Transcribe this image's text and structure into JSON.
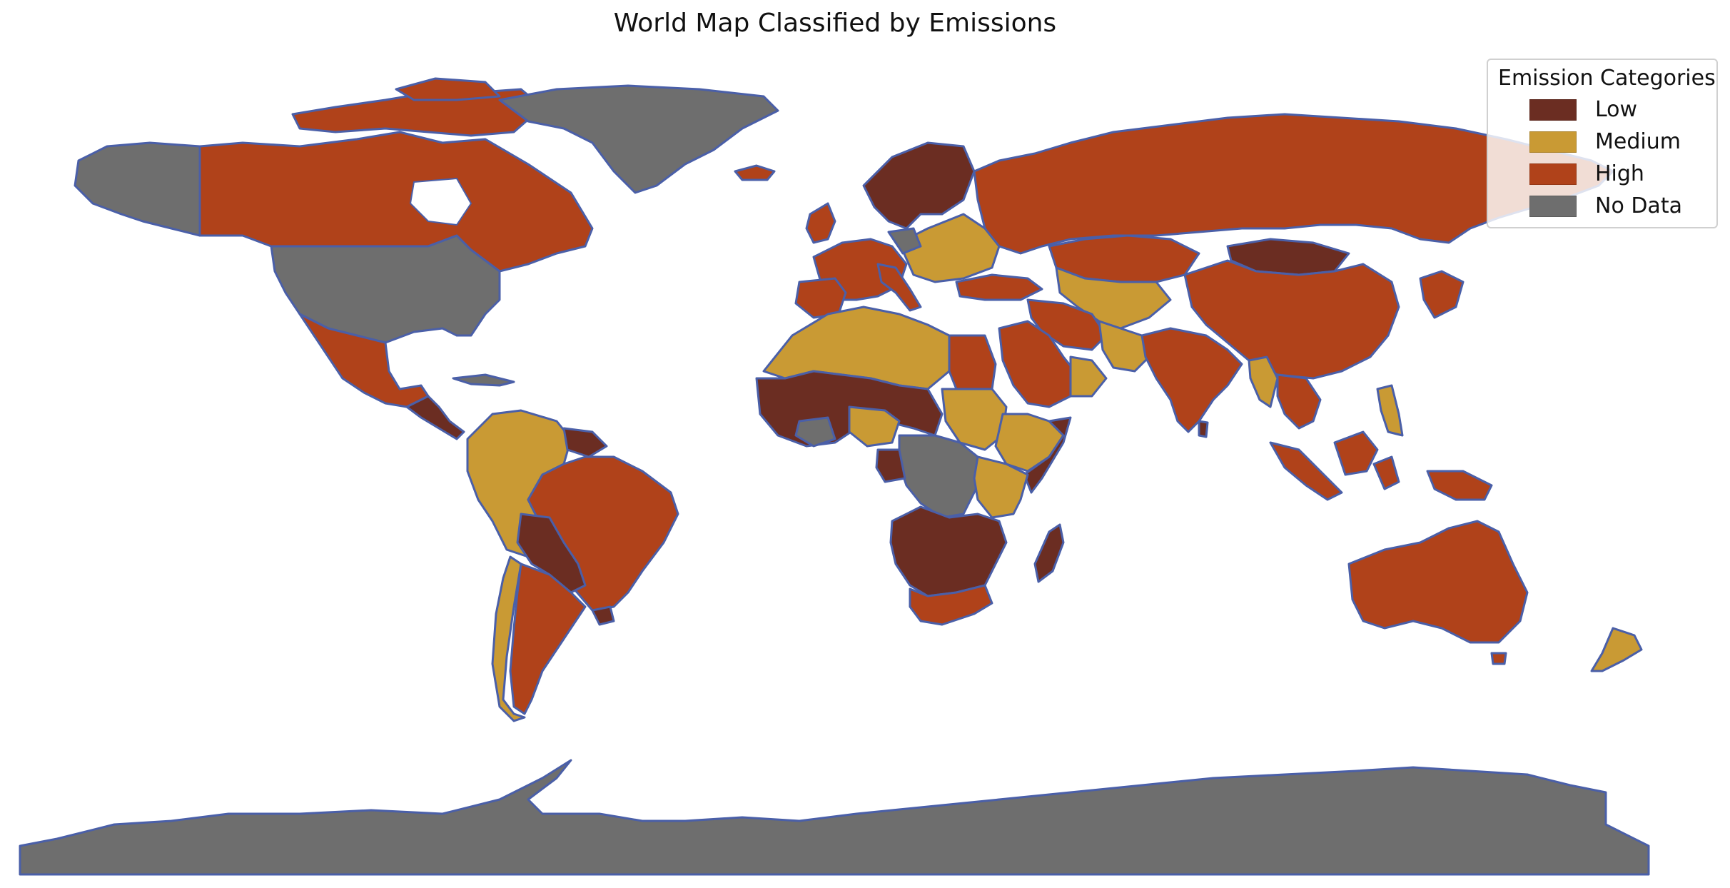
{
  "title": "World Map Classified by Emissions",
  "legend": {
    "title": "Emission Categories",
    "items": [
      {
        "label": "Low",
        "color": "#6b2d22"
      },
      {
        "label": "Medium",
        "color": "#c99a34"
      },
      {
        "label": "High",
        "color": "#b0421a"
      },
      {
        "label": "No Data",
        "color": "#6e6e6e"
      }
    ]
  },
  "border_color": "#4a5fa8"
}
